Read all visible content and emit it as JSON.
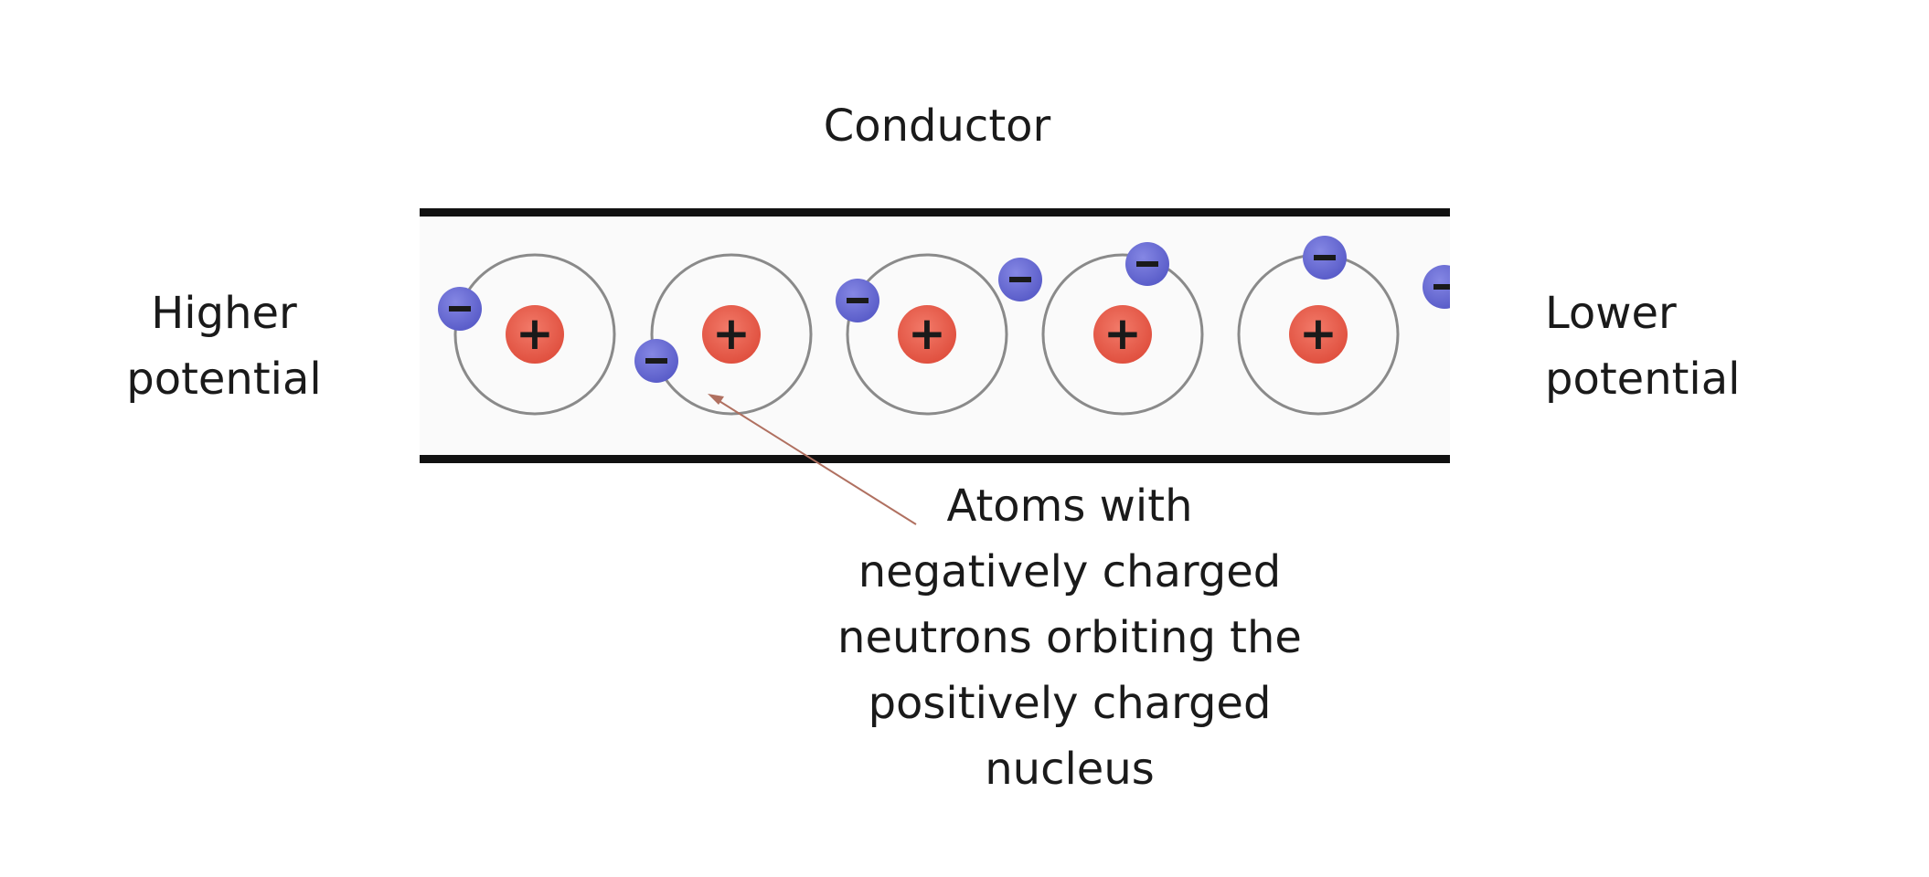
{
  "title": "Conductor",
  "left_label": {
    "line1": "Higher",
    "line2": "potential"
  },
  "right_label": {
    "line1": "Lower",
    "line2": "potential"
  },
  "annotation": {
    "line1": "Atoms with",
    "line2": "negatively charged",
    "line3": "neutrons orbiting the",
    "line4": "positively charged",
    "line5": "nucleus"
  },
  "nucleus_symbol": "+",
  "electron_symbol": "−",
  "atom_count": 5,
  "colors": {
    "nucleus": "#e8604f",
    "electron": "#6b6ed6",
    "orbit": "#8a8a8a",
    "conductor_edge": "#111111",
    "conductor_fill": "#fafafa",
    "pointer": "#b07060"
  }
}
